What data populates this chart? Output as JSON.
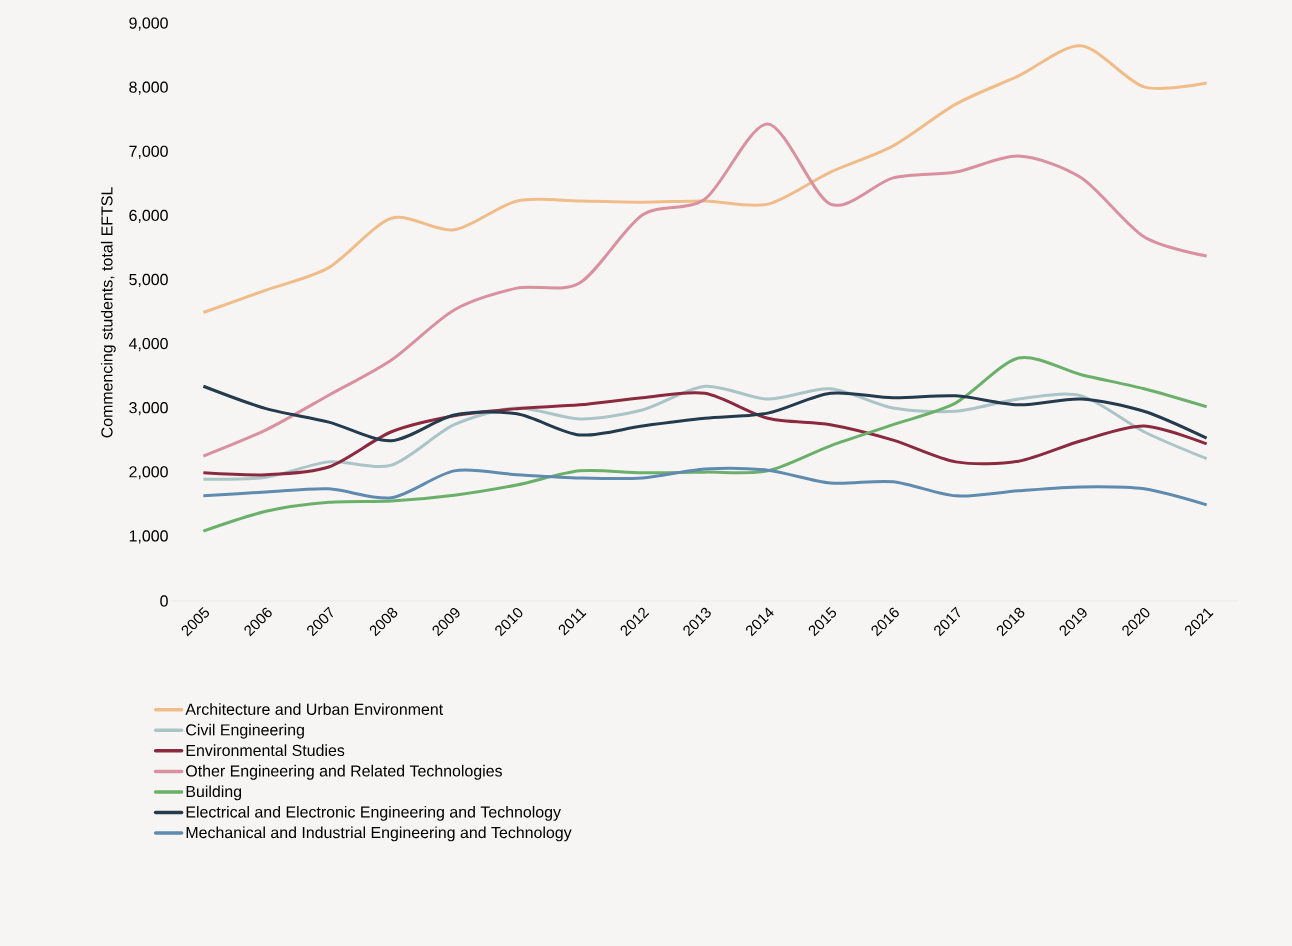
{
  "chart_data": {
    "type": "line",
    "ylabel": "Commencing students, total EFTSL",
    "categories": [
      "2005",
      "2006",
      "2007",
      "2008",
      "2009",
      "2010",
      "2011",
      "2012",
      "2013",
      "2014",
      "2015",
      "2016",
      "2017",
      "2018",
      "2019",
      "2020",
      "2021"
    ],
    "ylim": [
      0,
      9000
    ],
    "yticks": [
      0,
      {
        "value": 1000,
        "label": "1,000"
      },
      {
        "value": 2000,
        "label": "2,000"
      },
      {
        "value": 3000,
        "label": "3,000"
      },
      {
        "value": 4000,
        "label": "4,000"
      },
      {
        "value": 5000,
        "label": "5,000"
      },
      {
        "value": 6000,
        "label": "6,000"
      },
      {
        "value": 7000,
        "label": "7,000"
      },
      {
        "value": 8000,
        "label": "8,000"
      },
      {
        "value": 9000,
        "label": "9,000"
      }
    ],
    "grid": false,
    "legend": "bottom",
    "marker": "none",
    "line_style": "solid",
    "series": [
      {
        "name": "Architecture and Urban Environment",
        "color": "#f0bd8a",
        "values": [
          4500,
          4850,
          5200,
          5970,
          5790,
          6240,
          6240,
          6220,
          6240,
          6190,
          6690,
          7100,
          7750,
          8190,
          8660,
          8020,
          8080
        ]
      },
      {
        "name": "Civil Engineering",
        "color": "#abc4c8",
        "values": [
          1900,
          1930,
          2170,
          2120,
          2750,
          3010,
          2840,
          2980,
          3350,
          3150,
          3310,
          3010,
          2960,
          3150,
          3200,
          2640,
          2220
        ]
      },
      {
        "name": "Environmental Studies",
        "color": "#8b2a3f",
        "values": [
          2000,
          1970,
          2090,
          2640,
          2890,
          3000,
          3060,
          3170,
          3240,
          2850,
          2750,
          2510,
          2170,
          2180,
          2500,
          2730,
          2450
        ]
      },
      {
        "name": "Other Engineering and Related Technologies",
        "color": "#d9909f",
        "values": [
          2260,
          2670,
          3210,
          3760,
          4540,
          4880,
          4960,
          6020,
          6270,
          7440,
          6190,
          6600,
          6690,
          6940,
          6600,
          5680,
          5380
        ]
      },
      {
        "name": "Building",
        "color": "#6ab06a",
        "values": [
          1090,
          1400,
          1540,
          1560,
          1650,
          1810,
          2030,
          2000,
          2010,
          2030,
          2420,
          2750,
          3090,
          3790,
          3530,
          3310,
          3030
        ]
      },
      {
        "name": "Electrical and Electronic Engineering and Technology",
        "color": "#243a4d",
        "values": [
          3350,
          3000,
          2790,
          2500,
          2900,
          2920,
          2590,
          2730,
          2850,
          2930,
          3240,
          3170,
          3200,
          3060,
          3150,
          2960,
          2540
        ]
      },
      {
        "name": "Mechanical and Industrial Engineering and Technology",
        "color": "#5f8bb0",
        "values": [
          1640,
          1700,
          1750,
          1610,
          2030,
          1970,
          1920,
          1920,
          2060,
          2040,
          1840,
          1860,
          1640,
          1720,
          1780,
          1750,
          1500
        ]
      }
    ]
  }
}
